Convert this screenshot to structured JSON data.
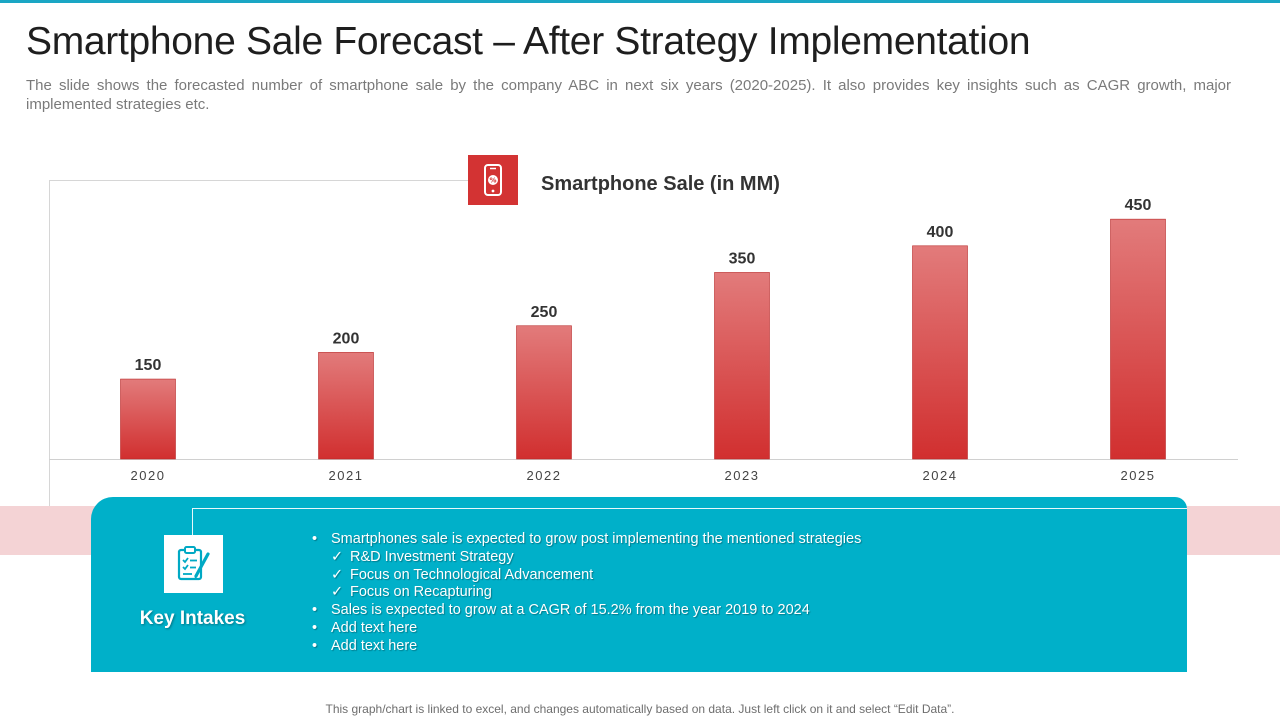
{
  "slide": {
    "title": "Smartphone Sale Forecast – After Strategy Implementation",
    "subtitle": "The slide shows the forecasted number of smartphone sale by the company ABC in next six years (2020-2025). It also provides key insights such as CAGR growth, major implemented strategies etc.",
    "footer": "This graph/chart is linked to excel, and changes automatically based on data. Just left click on it and select “Edit Data”."
  },
  "colors": {
    "accent_red": "#d33333",
    "bar_top": "#e27b7b",
    "bar_bottom": "#d12f2f",
    "teal": "#00b0c9",
    "pink_band": "#f4d3d5"
  },
  "icons": {
    "chart_icon": "smartphone-icon",
    "key_icon": "clipboard-checklist-icon"
  },
  "chart_data": {
    "type": "bar",
    "title": "Smartphone Sale (in MM)",
    "xlabel": "",
    "ylabel": "",
    "categories": [
      "2020",
      "2021",
      "2022",
      "2023",
      "2024",
      "2025"
    ],
    "values": [
      150,
      200,
      250,
      350,
      400,
      450
    ],
    "data_labels": true,
    "grid": false,
    "legend": "none"
  },
  "key_intakes": {
    "title": "Key Intakes",
    "items": [
      {
        "level": 0,
        "marker": "•",
        "text": "Smartphones sale is expected to grow post implementing the mentioned strategies"
      },
      {
        "level": 1,
        "marker": "✓",
        "text": "R&D Investment Strategy"
      },
      {
        "level": 1,
        "marker": "✓",
        "text": "Focus on Technological Advancement"
      },
      {
        "level": 1,
        "marker": "✓",
        "text": "Focus on Recapturing"
      },
      {
        "level": 0,
        "marker": "•",
        "text": "Sales is expected to grow at a CAGR of 15.2% from the year 2019 to 2024"
      },
      {
        "level": 0,
        "marker": "•",
        "text": "Add text here"
      },
      {
        "level": 0,
        "marker": "•",
        "text": "Add text here"
      }
    ]
  }
}
